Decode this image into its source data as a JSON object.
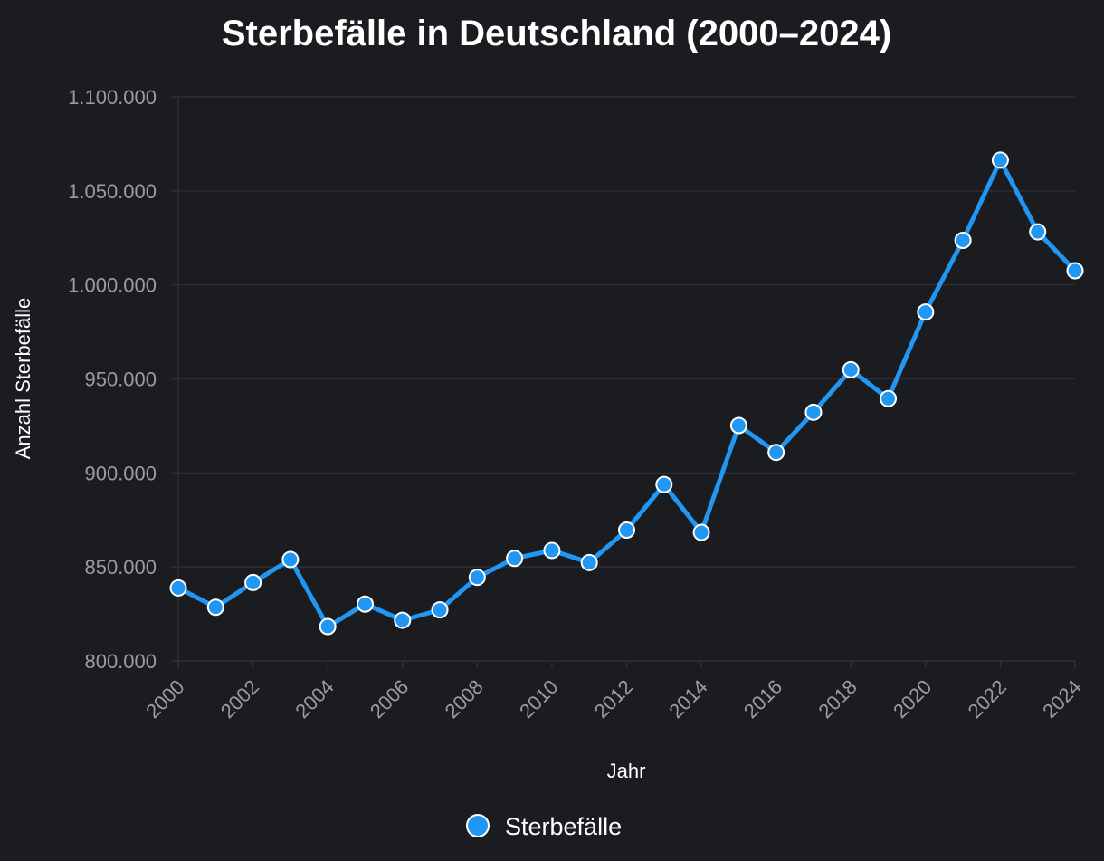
{
  "chart_data": {
    "type": "line",
    "title": "Sterbefälle in Deutschland (2000–2024)",
    "xlabel": "Jahr",
    "ylabel": "Anzahl Sterbefälle",
    "ylim": [
      800000,
      1100000
    ],
    "yticks": [
      800000,
      850000,
      900000,
      950000,
      1000000,
      1050000,
      1100000
    ],
    "ytick_labels": [
      "800.000",
      "850.000",
      "900.000",
      "950.000",
      "1.000.000",
      "1.050.000",
      "1.100.000"
    ],
    "xticks": [
      2000,
      2002,
      2004,
      2006,
      2008,
      2010,
      2012,
      2014,
      2016,
      2018,
      2020,
      2022,
      2024
    ],
    "xtick_labels": [
      "2000",
      "2002",
      "2004",
      "2006",
      "2008",
      "2010",
      "2012",
      "2014",
      "2016",
      "2018",
      "2020",
      "2022",
      "2024"
    ],
    "grid": true,
    "legend_position": "bottom-center",
    "x": [
      2000,
      2001,
      2002,
      2003,
      2004,
      2005,
      2006,
      2007,
      2008,
      2009,
      2010,
      2011,
      2012,
      2013,
      2014,
      2015,
      2016,
      2017,
      2018,
      2019,
      2020,
      2021,
      2022,
      2023,
      2024
    ],
    "series": [
      {
        "name": "Sterbefälle",
        "color": "#2196f3",
        "values": [
          838797,
          828541,
          841686,
          853946,
          818271,
          830227,
          821627,
          827155,
          844439,
          854544,
          858768,
          852328,
          869582,
          893825,
          868356,
          925200,
          910899,
          932272,
          954874,
          939520,
          985572,
          1023687,
          1066341,
          1028206,
          1007548
        ]
      }
    ]
  }
}
